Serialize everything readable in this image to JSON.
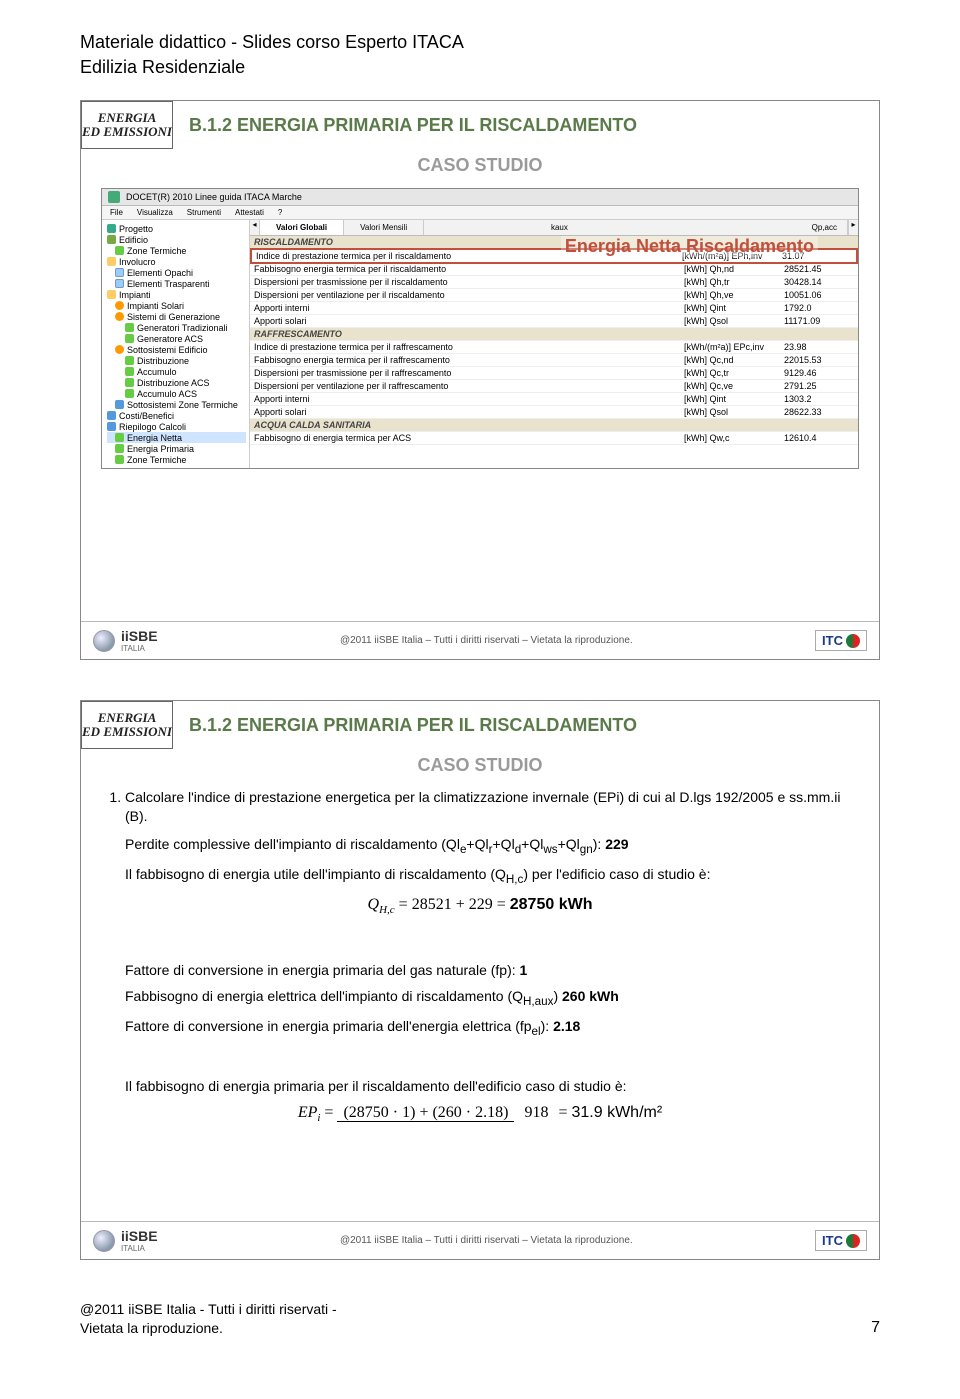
{
  "page_header": {
    "line1": "Materiale didattico - Slides corso Esperto ITACA",
    "line2": "Edilizia Residenziale"
  },
  "slide_common": {
    "badge_line1": "ENERGIA",
    "badge_line2": "ED EMISSIONI",
    "title": "B.1.2 ENERGIA PRIMARIA PER IL RISCALDAMENTO",
    "caso": "CASO STUDIO",
    "footer_text": "@2011 iiSBE Italia – Tutti i diritti riservati – Vietata la riproduzione.",
    "iisbe_label": "iiSBE",
    "iisbe_sub": "ITALIA",
    "itc_label": "ITC"
  },
  "slide1": {
    "overlay": "Energia Netta Riscaldamento",
    "app_title": "DOCET(R) 2010 Linee guida ITACA Marche",
    "menubar": [
      "File",
      "Visualizza",
      "Strumenti",
      "Attestati",
      "?"
    ],
    "tabs": {
      "a": "Valori Globali",
      "b": "Valori Mensili"
    },
    "table_headers": {
      "unit_a": "kaux",
      "unit_b": "Qp,acc"
    },
    "tree": [
      {
        "lvl": 0,
        "ic": "ic-globe",
        "label": "Progetto"
      },
      {
        "lvl": 0,
        "ic": "ic-build",
        "label": "Edificio"
      },
      {
        "lvl": 1,
        "ic": "ic-leaf",
        "label": "Zone Termiche"
      },
      {
        "lvl": 0,
        "ic": "ic-folder",
        "label": "Involucro"
      },
      {
        "lvl": 1,
        "ic": "ic-page",
        "label": "Elementi Opachi"
      },
      {
        "lvl": 1,
        "ic": "ic-page",
        "label": "Elementi Trasparenti"
      },
      {
        "lvl": 0,
        "ic": "ic-folder",
        "label": "Impianti"
      },
      {
        "lvl": 1,
        "ic": "ic-gear",
        "label": "Impianti Solari"
      },
      {
        "lvl": 1,
        "ic": "ic-gear",
        "label": "Sistemi di Generazione"
      },
      {
        "lvl": 2,
        "ic": "ic-leaf",
        "label": "Generatori Tradizionali"
      },
      {
        "lvl": 2,
        "ic": "ic-leaf",
        "label": "Generatore ACS"
      },
      {
        "lvl": 1,
        "ic": "ic-gear",
        "label": "Sottosistemi Edificio"
      },
      {
        "lvl": 2,
        "ic": "ic-leaf",
        "label": "Distribuzione"
      },
      {
        "lvl": 2,
        "ic": "ic-leaf",
        "label": "Accumulo"
      },
      {
        "lvl": 2,
        "ic": "ic-leaf",
        "label": "Distribuzione ACS"
      },
      {
        "lvl": 2,
        "ic": "ic-leaf",
        "label": "Accumulo ACS"
      },
      {
        "lvl": 1,
        "ic": "ic-blue",
        "label": "Sottosistemi Zone Termiche"
      },
      {
        "lvl": 0,
        "ic": "ic-blue",
        "label": "Costi/Benefici"
      },
      {
        "lvl": 0,
        "ic": "ic-blue",
        "label": "Riepilogo Calcoli",
        "children": true
      },
      {
        "lvl": 1,
        "ic": "ic-leaf",
        "label": "Energia Netta",
        "sel": true
      },
      {
        "lvl": 1,
        "ic": "ic-leaf",
        "label": "Energia Primaria"
      },
      {
        "lvl": 1,
        "ic": "ic-leaf",
        "label": "Zone Termiche"
      }
    ],
    "sections": [
      {
        "title": "RISCALDAMENTO",
        "rows": [
          {
            "label": "Indice di prestazione termica per il riscaldamento",
            "unit": "[kWh/(m²a)] EPh,inv",
            "val": "31.07",
            "hl": true
          },
          {
            "label": "Fabbisogno energia termica per il riscaldamento",
            "unit": "[kWh] Qh,nd",
            "val": "28521.45"
          },
          {
            "label": "Dispersioni per trasmissione per il riscaldamento",
            "unit": "[kWh] Qh,tr",
            "val": "30428.14"
          },
          {
            "label": "Dispersioni per ventilazione per il riscaldamento",
            "unit": "[kWh] Qh,ve",
            "val": "10051.06"
          },
          {
            "label": "Apporti interni",
            "unit": "[kWh] Qint",
            "val": "1792.0"
          },
          {
            "label": "Apporti solari",
            "unit": "[kWh] Qsol",
            "val": "11171.09"
          }
        ]
      },
      {
        "title": "RAFFRESCAMENTO",
        "rows": [
          {
            "label": "Indice di prestazione termica per il raffrescamento",
            "unit": "[kWh/(m²a)] EPc,inv",
            "val": "23.98"
          },
          {
            "label": "Fabbisogno energia termica per il raffrescamento",
            "unit": "[kWh] Qc,nd",
            "val": "22015.53"
          },
          {
            "label": "Dispersioni per trasmissione per il raffrescamento",
            "unit": "[kWh] Qc,tr",
            "val": "9129.46"
          },
          {
            "label": "Dispersioni per ventilazione per il raffrescamento",
            "unit": "[kWh] Qc,ve",
            "val": "2791.25"
          },
          {
            "label": "Apporti interni",
            "unit": "[kWh] Qint",
            "val": "1303.2"
          },
          {
            "label": "Apporti solari",
            "unit": "[kWh] Qsol",
            "val": "28622.33"
          }
        ]
      },
      {
        "title": "ACQUA CALDA SANITARIA",
        "rows": [
          {
            "label": "Fabbisogno di energia termica per ACS",
            "unit": "[kWh] Qw,c",
            "val": "12610.4"
          }
        ]
      }
    ]
  },
  "slide2": {
    "bullet1": "Calcolare l'indice di prestazione energetica per la climatizzazione invernale (EPi) di cui al D.lgs 192/2005 e ss.mm.ii (B).",
    "line_perdite_a": "Perdite complessive dell'impianto di riscaldamento (Ql",
    "line_perdite_b": "+Ql",
    "line_perdite_end": "): ",
    "perdite_val": "229",
    "subs_perdite": [
      "e",
      "r",
      "d",
      "ws",
      "gn"
    ],
    "line_fabb": "Il fabbisogno di energia utile dell'impianto di riscaldamento (Q",
    "line_fabb_sub": "H,c",
    "line_fabb_end": ") per l'edificio caso di studio è:",
    "formula1_lhs": "Q",
    "formula1_sub": "H,c",
    "formula1_eq": " = 28521 + 229 = ",
    "formula1_res": "28750 kWh",
    "fp_line_a": "Fattore di conversione in energia primaria del gas naturale (fp): ",
    "fp_val": "1",
    "fabb_el_a": "Fabbisogno di energia elettrica dell'impianto di riscaldamento (Q",
    "fabb_el_sub": "H,aux",
    "fabb_el_b": ") ",
    "fabb_el_val": "260 kWh",
    "fpel_a": "Fattore di conversione in energia primaria dell'energia elettrica (fp",
    "fpel_sub": "el",
    "fpel_b": "): ",
    "fpel_val": "2.18",
    "final_intro": "Il fabbisogno di energia primaria per il riscaldamento dell'edificio caso di studio è:",
    "formula2_lhs": "EP",
    "formula2_sub": "i",
    "formula2_num": "(28750 · 1) + (260 · 2.18)",
    "formula2_den": "918",
    "formula2_eq": " = ",
    "formula2_res": "31.9 kWh/m²"
  },
  "page_footer": {
    "left1": "@2011 iiSBE Italia - Tutti i diritti riservati -",
    "left2": "Vietata la riproduzione.",
    "number": "7"
  }
}
